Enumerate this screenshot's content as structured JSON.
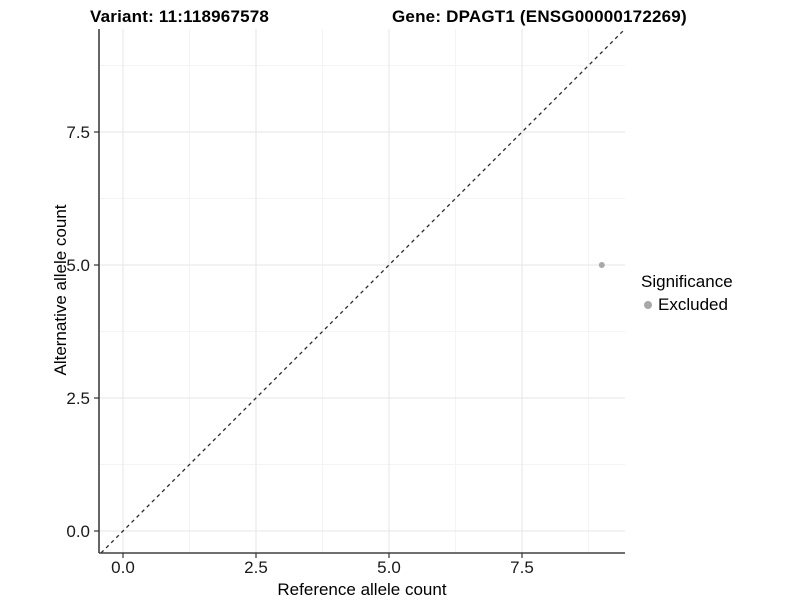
{
  "title": {
    "variant": "Variant: 11:118967578",
    "gene": "Gene: DPAGT1 (ENSG00000172269)"
  },
  "chart_data": {
    "type": "scatter",
    "title": "Variant: 11:118967578   Gene: DPAGT1 (ENSG00000172269)",
    "xlabel": "Reference allele count",
    "ylabel": "Alternative allele count",
    "xlim": [
      -0.45,
      9.45
    ],
    "ylim": [
      -0.45,
      9.45
    ],
    "xticks": {
      "values": [
        0,
        2.5,
        5,
        7.5
      ],
      "labels": [
        "0.0",
        "2.5",
        "5.0",
        "7.5"
      ]
    },
    "yticks": {
      "values": [
        0,
        2.5,
        5,
        7.5
      ],
      "labels": [
        "0.0",
        "2.5",
        "5.0",
        "7.5"
      ]
    },
    "minor_ticks": [
      1.25,
      3.75,
      6.25,
      8.75
    ],
    "grid": "major+minor",
    "series": [
      {
        "name": "Excluded",
        "color": "#a8a8a8",
        "points": [
          {
            "x": 9,
            "y": 5
          }
        ]
      }
    ],
    "reference_line": {
      "kind": "diagonal",
      "equation": "y = x",
      "style": "dashed",
      "color": "#2a2a2a"
    },
    "legend": {
      "title": "Significance",
      "position": "right",
      "items": [
        {
          "label": "Excluded",
          "color": "#a8a8a8"
        }
      ]
    }
  },
  "colors": {
    "background": "#ffffff",
    "axis_line": "#404040",
    "tick_mark": "#333333",
    "tick_label": "#1a1a1a",
    "grid_major": "#e9e9e9",
    "grid_minor": "#f4f4f4",
    "point": "#a8a8a8"
  }
}
